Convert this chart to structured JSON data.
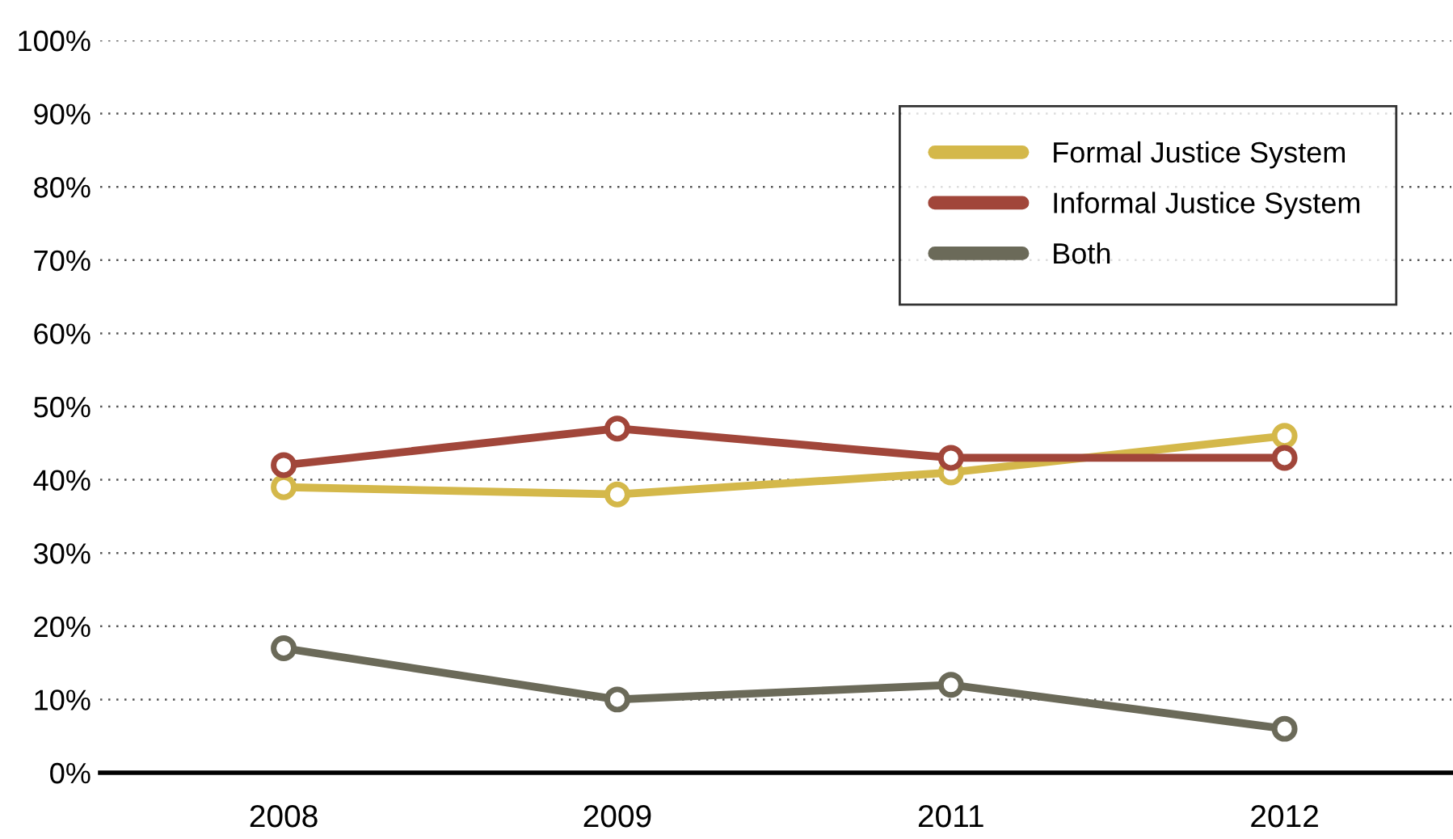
{
  "chart_data": {
    "type": "line",
    "categories": [
      "2008",
      "2009",
      "2011",
      "2012"
    ],
    "series": [
      {
        "name": "Formal Justice System",
        "color": "#d4b84a",
        "values": [
          39,
          38,
          41,
          46
        ]
      },
      {
        "name": "Informal Justice System",
        "color": "#a1463a",
        "values": [
          42,
          47,
          43,
          43
        ]
      },
      {
        "name": "Both",
        "color": "#6b6a59",
        "values": [
          17,
          10,
          12,
          6
        ]
      }
    ],
    "ylim": [
      0,
      100
    ],
    "yticks": [
      {
        "value": 0,
        "label": "0%"
      },
      {
        "value": 10,
        "label": "10%"
      },
      {
        "value": 20,
        "label": "20%"
      },
      {
        "value": 30,
        "label": "30%"
      },
      {
        "value": 40,
        "label": "40%"
      },
      {
        "value": 50,
        "label": "50%"
      },
      {
        "value": 60,
        "label": "60%"
      },
      {
        "value": 70,
        "label": "70%"
      },
      {
        "value": 80,
        "label": "80%"
      },
      {
        "value": 90,
        "label": "90%"
      },
      {
        "value": 100,
        "label": "100%"
      }
    ],
    "grid": "y",
    "legend": "top right",
    "marker": "circle",
    "line_style": "solid"
  }
}
